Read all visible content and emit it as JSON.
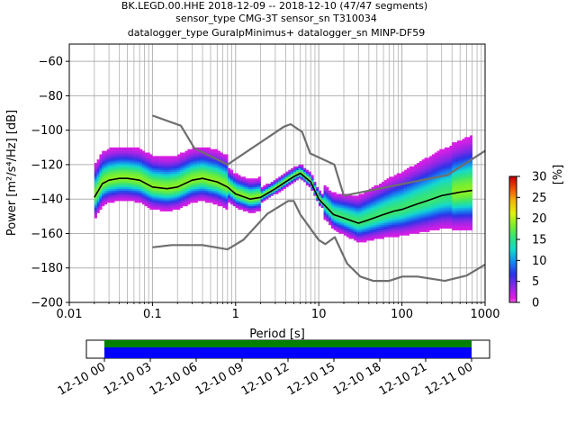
{
  "chart_data": [
    {
      "type": "heatmap",
      "title_lines": [
        "BK.LEGD.00.HHE   2018-12-09 -- 2018-12-10  (47/47 segments)",
        "sensor_type CMG-3T sensor_sn T310034",
        "datalogger_type GuralpMinimus+ datalogger_sn MINP-DF59"
      ],
      "xlabel": "Period [s]",
      "ylabel": "Power [m²/s⁴/Hz] [dB]",
      "xscale": "log",
      "xlim": [
        0.01,
        1000
      ],
      "ylim": [
        -200,
        -50
      ],
      "x_ticks": [
        0.01,
        0.1,
        1,
        10,
        100,
        1000
      ],
      "x_tick_labels": [
        "0.01",
        "0.1",
        "1",
        "10",
        "100",
        "1000"
      ],
      "y_ticks": [
        -200,
        -180,
        -160,
        -140,
        -120,
        -100,
        -80,
        -60
      ],
      "y_tick_labels": [
        "−200",
        "−180",
        "−160",
        "−140",
        "−120",
        "−100",
        "−80",
        "−60"
      ],
      "grid": true,
      "colorbar": {
        "label": "[%]",
        "range": [
          0,
          30
        ],
        "ticks": [
          0,
          5,
          10,
          15,
          20,
          25,
          30
        ],
        "tick_labels": [
          "0",
          "5",
          "10",
          "15",
          "20",
          "25",
          "30"
        ],
        "colormap": [
          "#ffffff",
          "#e41ce4",
          "#8a28e6",
          "#2a33e8",
          "#1488f0",
          "#13d8d0",
          "#33e37a",
          "#7aef2c",
          "#e1f213",
          "#f4b80c",
          "#f05208",
          "#c40000"
        ]
      },
      "series": [
        {
          "name": "median",
          "color": "#000000",
          "x": [
            0.02,
            0.025,
            0.03,
            0.04,
            0.05,
            0.07,
            0.1,
            0.15,
            0.2,
            0.3,
            0.4,
            0.6,
            0.8,
            1,
            1.5,
            2,
            3,
            4,
            5,
            6,
            8,
            10,
            15,
            20,
            30,
            40,
            60,
            80,
            100,
            150,
            200,
            300,
            500,
            700
          ],
          "y": [
            -139,
            -131,
            -129,
            -128,
            -128,
            -129,
            -133,
            -134,
            -133,
            -129,
            -128,
            -130,
            -133,
            -137,
            -140,
            -139,
            -134,
            -130,
            -127,
            -125,
            -130,
            -140,
            -149,
            -151,
            -154,
            -152,
            -149,
            -147,
            -146,
            -143,
            -141,
            -138,
            -136,
            -135
          ]
        },
        {
          "name": "high noise model",
          "color": "#6e6e6e",
          "x": [
            0.1,
            0.22,
            0.32,
            0.8,
            3.8,
            4.6,
            6.3,
            7.9,
            15.4,
            20,
            354.8,
            1000
          ],
          "y": [
            -91.5,
            -97.4,
            -110.5,
            -120,
            -98,
            -96.5,
            -101,
            -113.5,
            -120,
            -138,
            -126,
            -112
          ]
        },
        {
          "name": "low noise model",
          "color": "#6e6e6e",
          "x": [
            0.1,
            0.17,
            0.4,
            0.8,
            1.24,
            2.4,
            4.3,
            5,
            6,
            10,
            12,
            15.6,
            21.9,
            31.6,
            45,
            70,
            101,
            154,
            328,
            600,
            1000
          ],
          "y": [
            -168,
            -166.7,
            -166.7,
            -169.2,
            -163.7,
            -148.6,
            -141.1,
            -141.1,
            -149,
            -163.8,
            -166.2,
            -162.1,
            -177.5,
            -185,
            -187.5,
            -187.5,
            -185,
            -185,
            -187.5,
            -184.4,
            -178
          ]
        }
      ]
    },
    {
      "type": "bar",
      "xlim_labels": [
        "12-10 00",
        "12-10 03",
        "12-10 06",
        "12-10 09",
        "12-10 12",
        "12-10 15",
        "12-10 18",
        "12-10 21",
        "12-11 00"
      ],
      "coverage_hours": [
        0,
        24
      ],
      "bands": [
        {
          "name": "data",
          "color": "#0000ff"
        },
        {
          "name": "psd",
          "color": "#008000"
        }
      ]
    }
  ]
}
